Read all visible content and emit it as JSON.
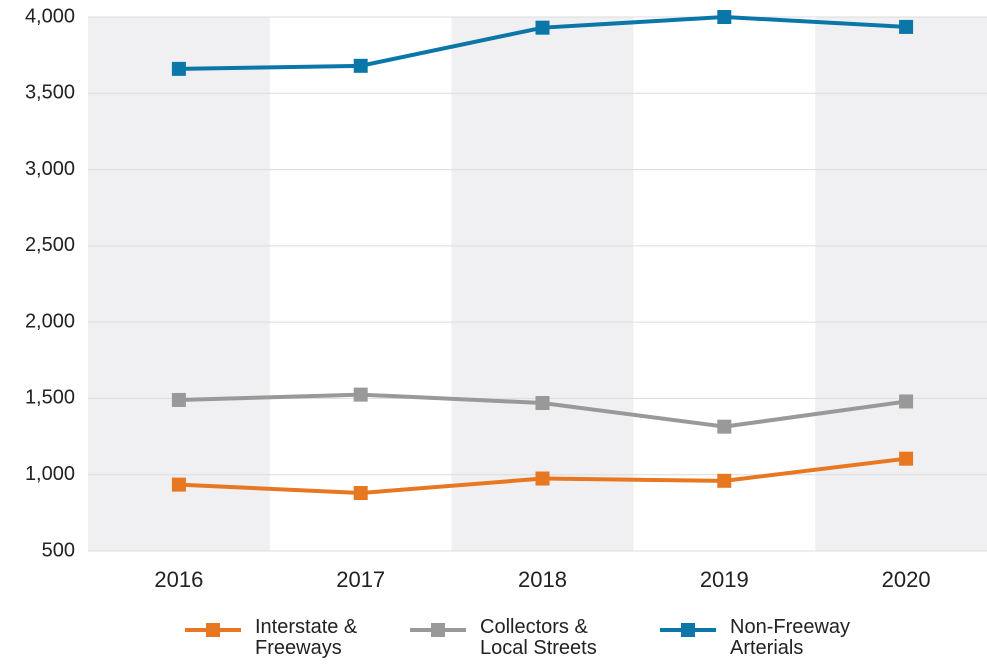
{
  "chart_data": {
    "type": "line",
    "categories": [
      "2016",
      "2017",
      "2018",
      "2019",
      "2020"
    ],
    "series": [
      {
        "name": "Interstate & Freeways",
        "color": "#e87722",
        "values": [
          935,
          880,
          975,
          960,
          1105
        ]
      },
      {
        "name": "Collectors & Local Streets",
        "color": "#999999",
        "values": [
          1490,
          1525,
          1470,
          1315,
          1480
        ]
      },
      {
        "name": "Non-Freeway Arterials",
        "color": "#0a77a8",
        "values": [
          3660,
          3680,
          3930,
          4000,
          3935
        ]
      }
    ],
    "ylim": [
      500,
      4000
    ],
    "yticks": [
      500,
      {
        "value": 1000,
        "label": "1,000"
      },
      {
        "value": 1500,
        "label": "1,500"
      },
      {
        "value": 2000,
        "label": "2,000"
      },
      {
        "value": 2500,
        "label": "2,500"
      },
      {
        "value": 3000,
        "label": "3,000"
      },
      {
        "value": 3500,
        "label": "3,500"
      },
      {
        "value": 4000,
        "label": "4,000"
      }
    ],
    "grid": true,
    "legend": "bottom"
  }
}
